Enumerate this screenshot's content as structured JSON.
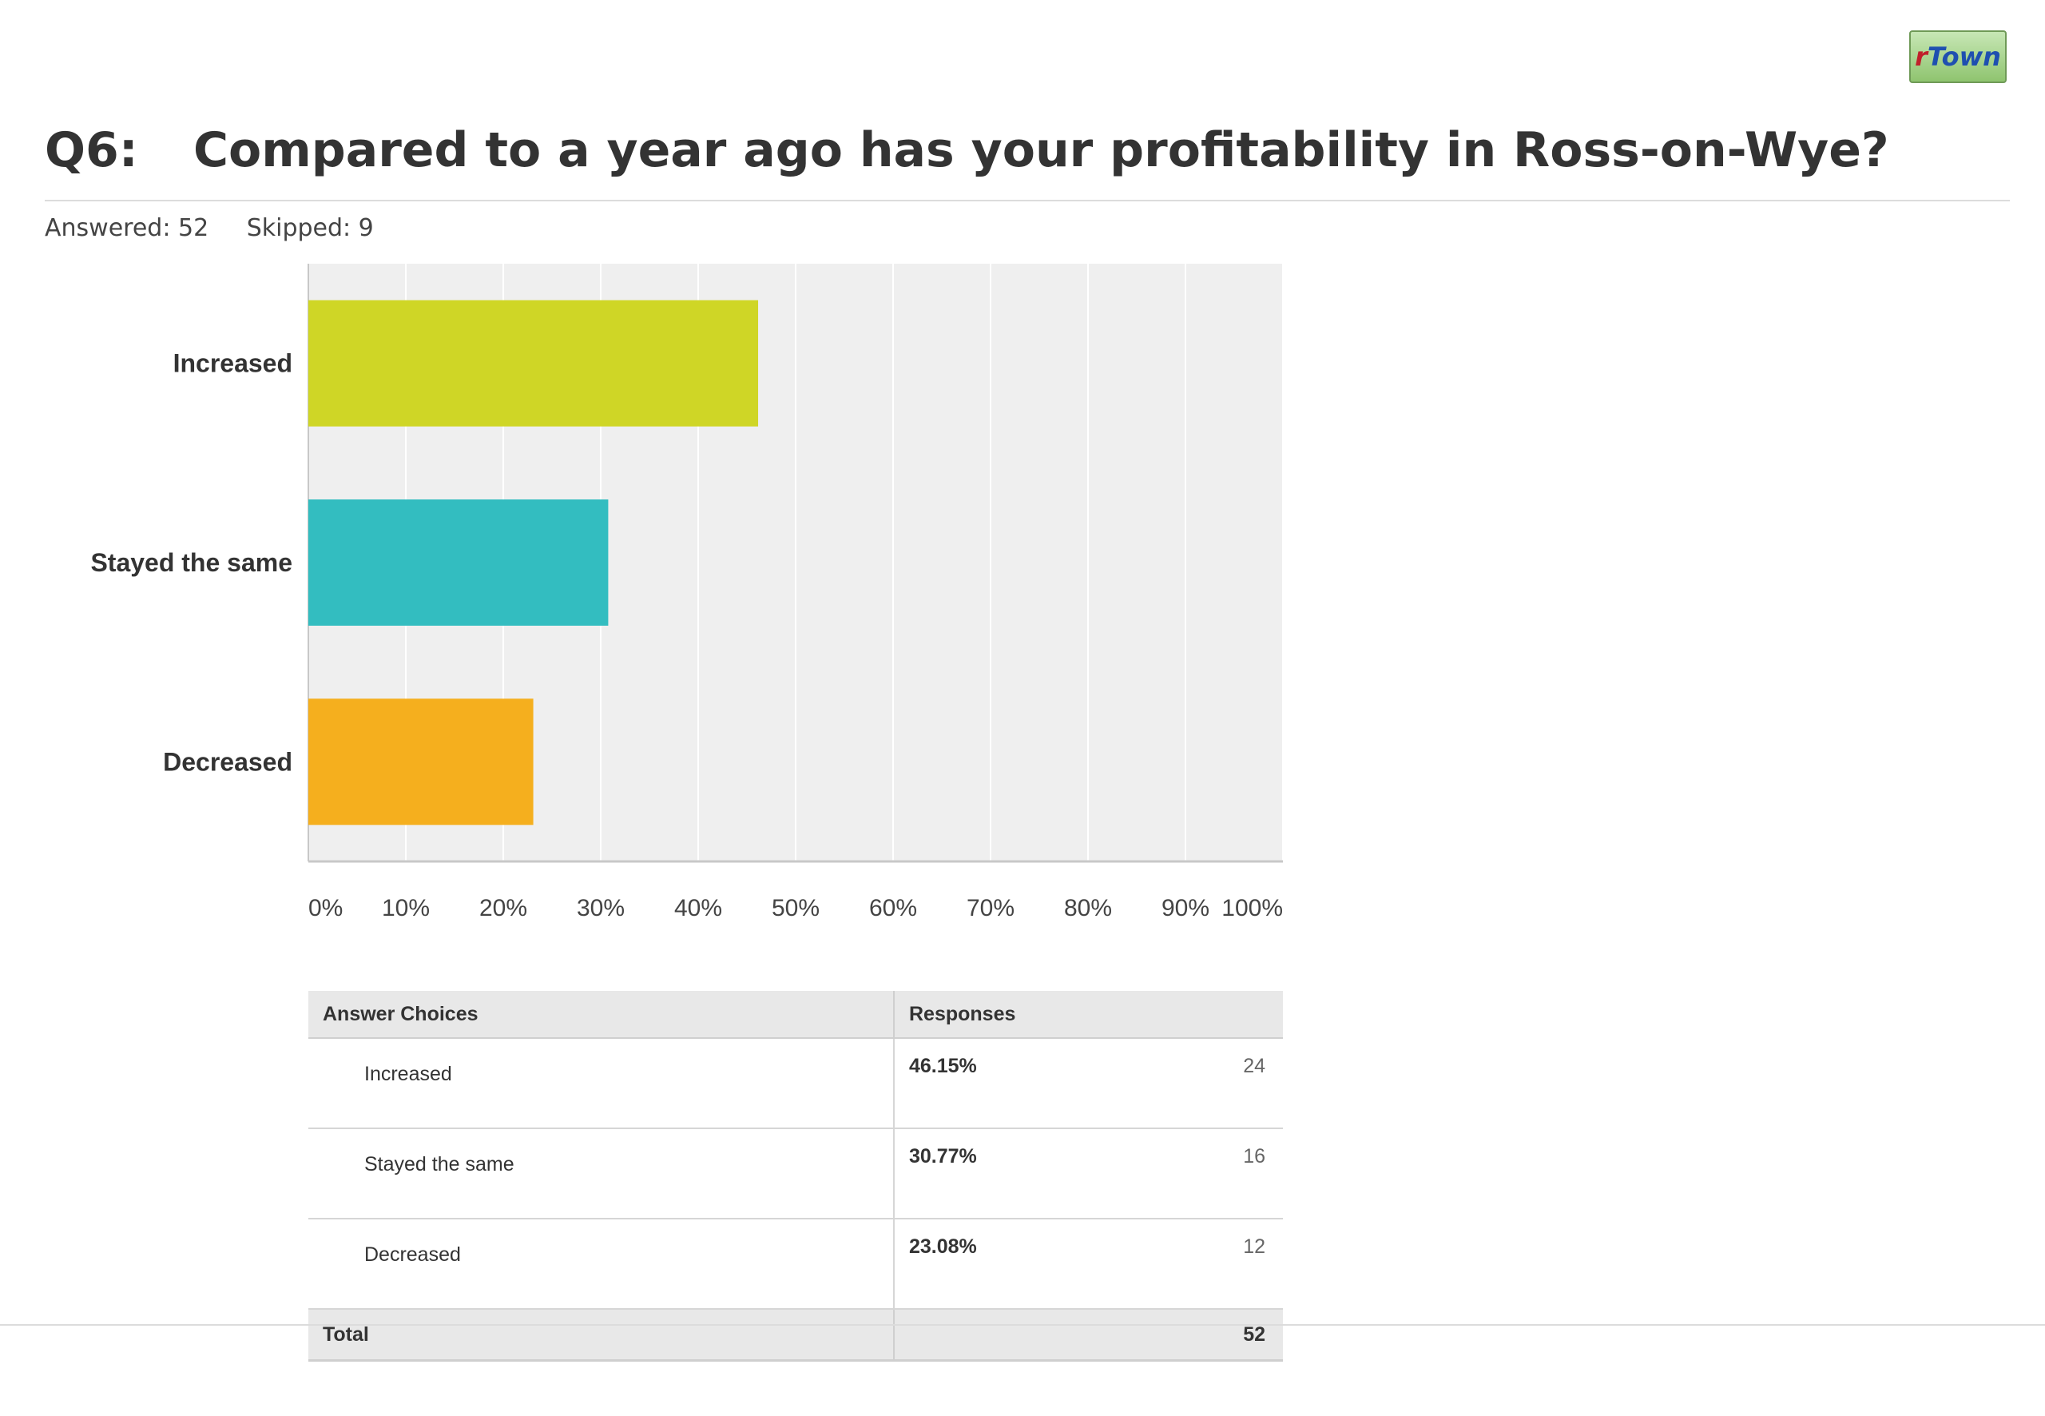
{
  "logo": {
    "first": "r",
    "rest": "Town"
  },
  "question": {
    "number": "Q6:",
    "text": "Compared to a year ago has your profitability in Ross-on-Wye?"
  },
  "stats": {
    "answered": "Answered: 52",
    "skipped": "Skipped: 9"
  },
  "chart_data": {
    "type": "bar",
    "orientation": "horizontal",
    "categories": [
      "Increased",
      "Stayed the same",
      "Decreased"
    ],
    "values": [
      46.15,
      30.77,
      23.08
    ],
    "colors": [
      "#cfd626",
      "#33bdc0",
      "#f5af1e"
    ],
    "xlim": [
      0,
      100
    ],
    "xticks": [
      "0%",
      "10%",
      "20%",
      "30%",
      "40%",
      "50%",
      "60%",
      "70%",
      "80%",
      "90%",
      "100%"
    ],
    "grid": true,
    "title": "",
    "xlabel": "",
    "ylabel": ""
  },
  "table": {
    "headers": [
      "Answer Choices",
      "Responses"
    ],
    "rows": [
      {
        "label": "Increased",
        "percent": "46.15%",
        "count": "24"
      },
      {
        "label": "Stayed the same",
        "percent": "30.77%",
        "count": "16"
      },
      {
        "label": "Decreased",
        "percent": "23.08%",
        "count": "12"
      }
    ],
    "total_label": "Total",
    "total_count": "52"
  }
}
